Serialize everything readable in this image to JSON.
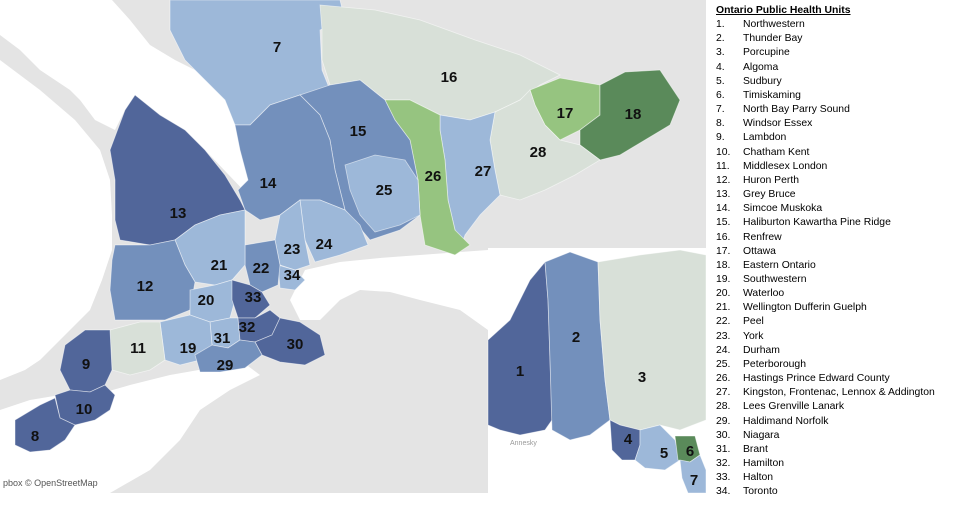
{
  "legend": {
    "title": "Ontario Public Health Units",
    "items": [
      {
        "n": "1.",
        "name": "Northwestern"
      },
      {
        "n": "2.",
        "name": "Thunder Bay"
      },
      {
        "n": "3.",
        "name": "Porcupine"
      },
      {
        "n": "4.",
        "name": "Algoma"
      },
      {
        "n": "5.",
        "name": "Sudbury"
      },
      {
        "n": "6.",
        "name": "Timiskaming"
      },
      {
        "n": "7.",
        "name": "North Bay Parry Sound"
      },
      {
        "n": "8.",
        "name": "Windsor Essex"
      },
      {
        "n": "9.",
        "name": "Lambdon"
      },
      {
        "n": "10.",
        "name": "Chatham Kent"
      },
      {
        "n": "11.",
        "name": "Middlesex London"
      },
      {
        "n": "12.",
        "name": "Huron Perth"
      },
      {
        "n": "13.",
        "name": "Grey Bruce"
      },
      {
        "n": "14.",
        "name": "Simcoe Muskoka"
      },
      {
        "n": "15.",
        "name": "Haliburton Kawartha Pine Ridge"
      },
      {
        "n": "16.",
        "name": "Renfrew"
      },
      {
        "n": "17.",
        "name": "Ottawa"
      },
      {
        "n": "18.",
        "name": "Eastern Ontario"
      },
      {
        "n": "19.",
        "name": "Southwestern"
      },
      {
        "n": "20.",
        "name": "Waterloo"
      },
      {
        "n": "21.",
        "name": "Wellington Dufferin Guelph"
      },
      {
        "n": "22.",
        "name": "Peel"
      },
      {
        "n": "23.",
        "name": "York"
      },
      {
        "n": "24.",
        "name": "Durham"
      },
      {
        "n": "25.",
        "name": "Peterborough"
      },
      {
        "n": "26.",
        "name": "Hastings Prince Edward County"
      },
      {
        "n": "27.",
        "name": "Kingston, Frontenac, Lennox & Addington"
      },
      {
        "n": "28.",
        "name": "Lees Grenville Lanark"
      },
      {
        "n": "29.",
        "name": "Haldimand Norfolk"
      },
      {
        "n": "30.",
        "name": "Niagara"
      },
      {
        "n": "31.",
        "name": "Brant"
      },
      {
        "n": "32.",
        "name": "Hamilton"
      },
      {
        "n": "33.",
        "name": "Halton"
      },
      {
        "n": "34.",
        "name": "Toronto"
      }
    ]
  },
  "map": {
    "attribution": "pbox © OpenStreetMap",
    "water_label": "Annesky",
    "colors": {
      "land": "#e4e4e4",
      "water": "#ffffff",
      "dark_blue": "#51669a",
      "mid_blue": "#7390bc",
      "light_blue": "#9db8d9",
      "pale_gray_green": "#d8e0d8",
      "light_green": "#96c480",
      "dark_green": "#5a8a5a"
    },
    "unit_labels": [
      "1",
      "2",
      "3",
      "4",
      "5",
      "6",
      "7",
      "8",
      "9",
      "10",
      "11",
      "12",
      "13",
      "14",
      "15",
      "16",
      "17",
      "18",
      "19",
      "20",
      "21",
      "22",
      "23",
      "24",
      "25",
      "26",
      "27",
      "28",
      "29",
      "30",
      "31",
      "32",
      "33",
      "34"
    ]
  }
}
